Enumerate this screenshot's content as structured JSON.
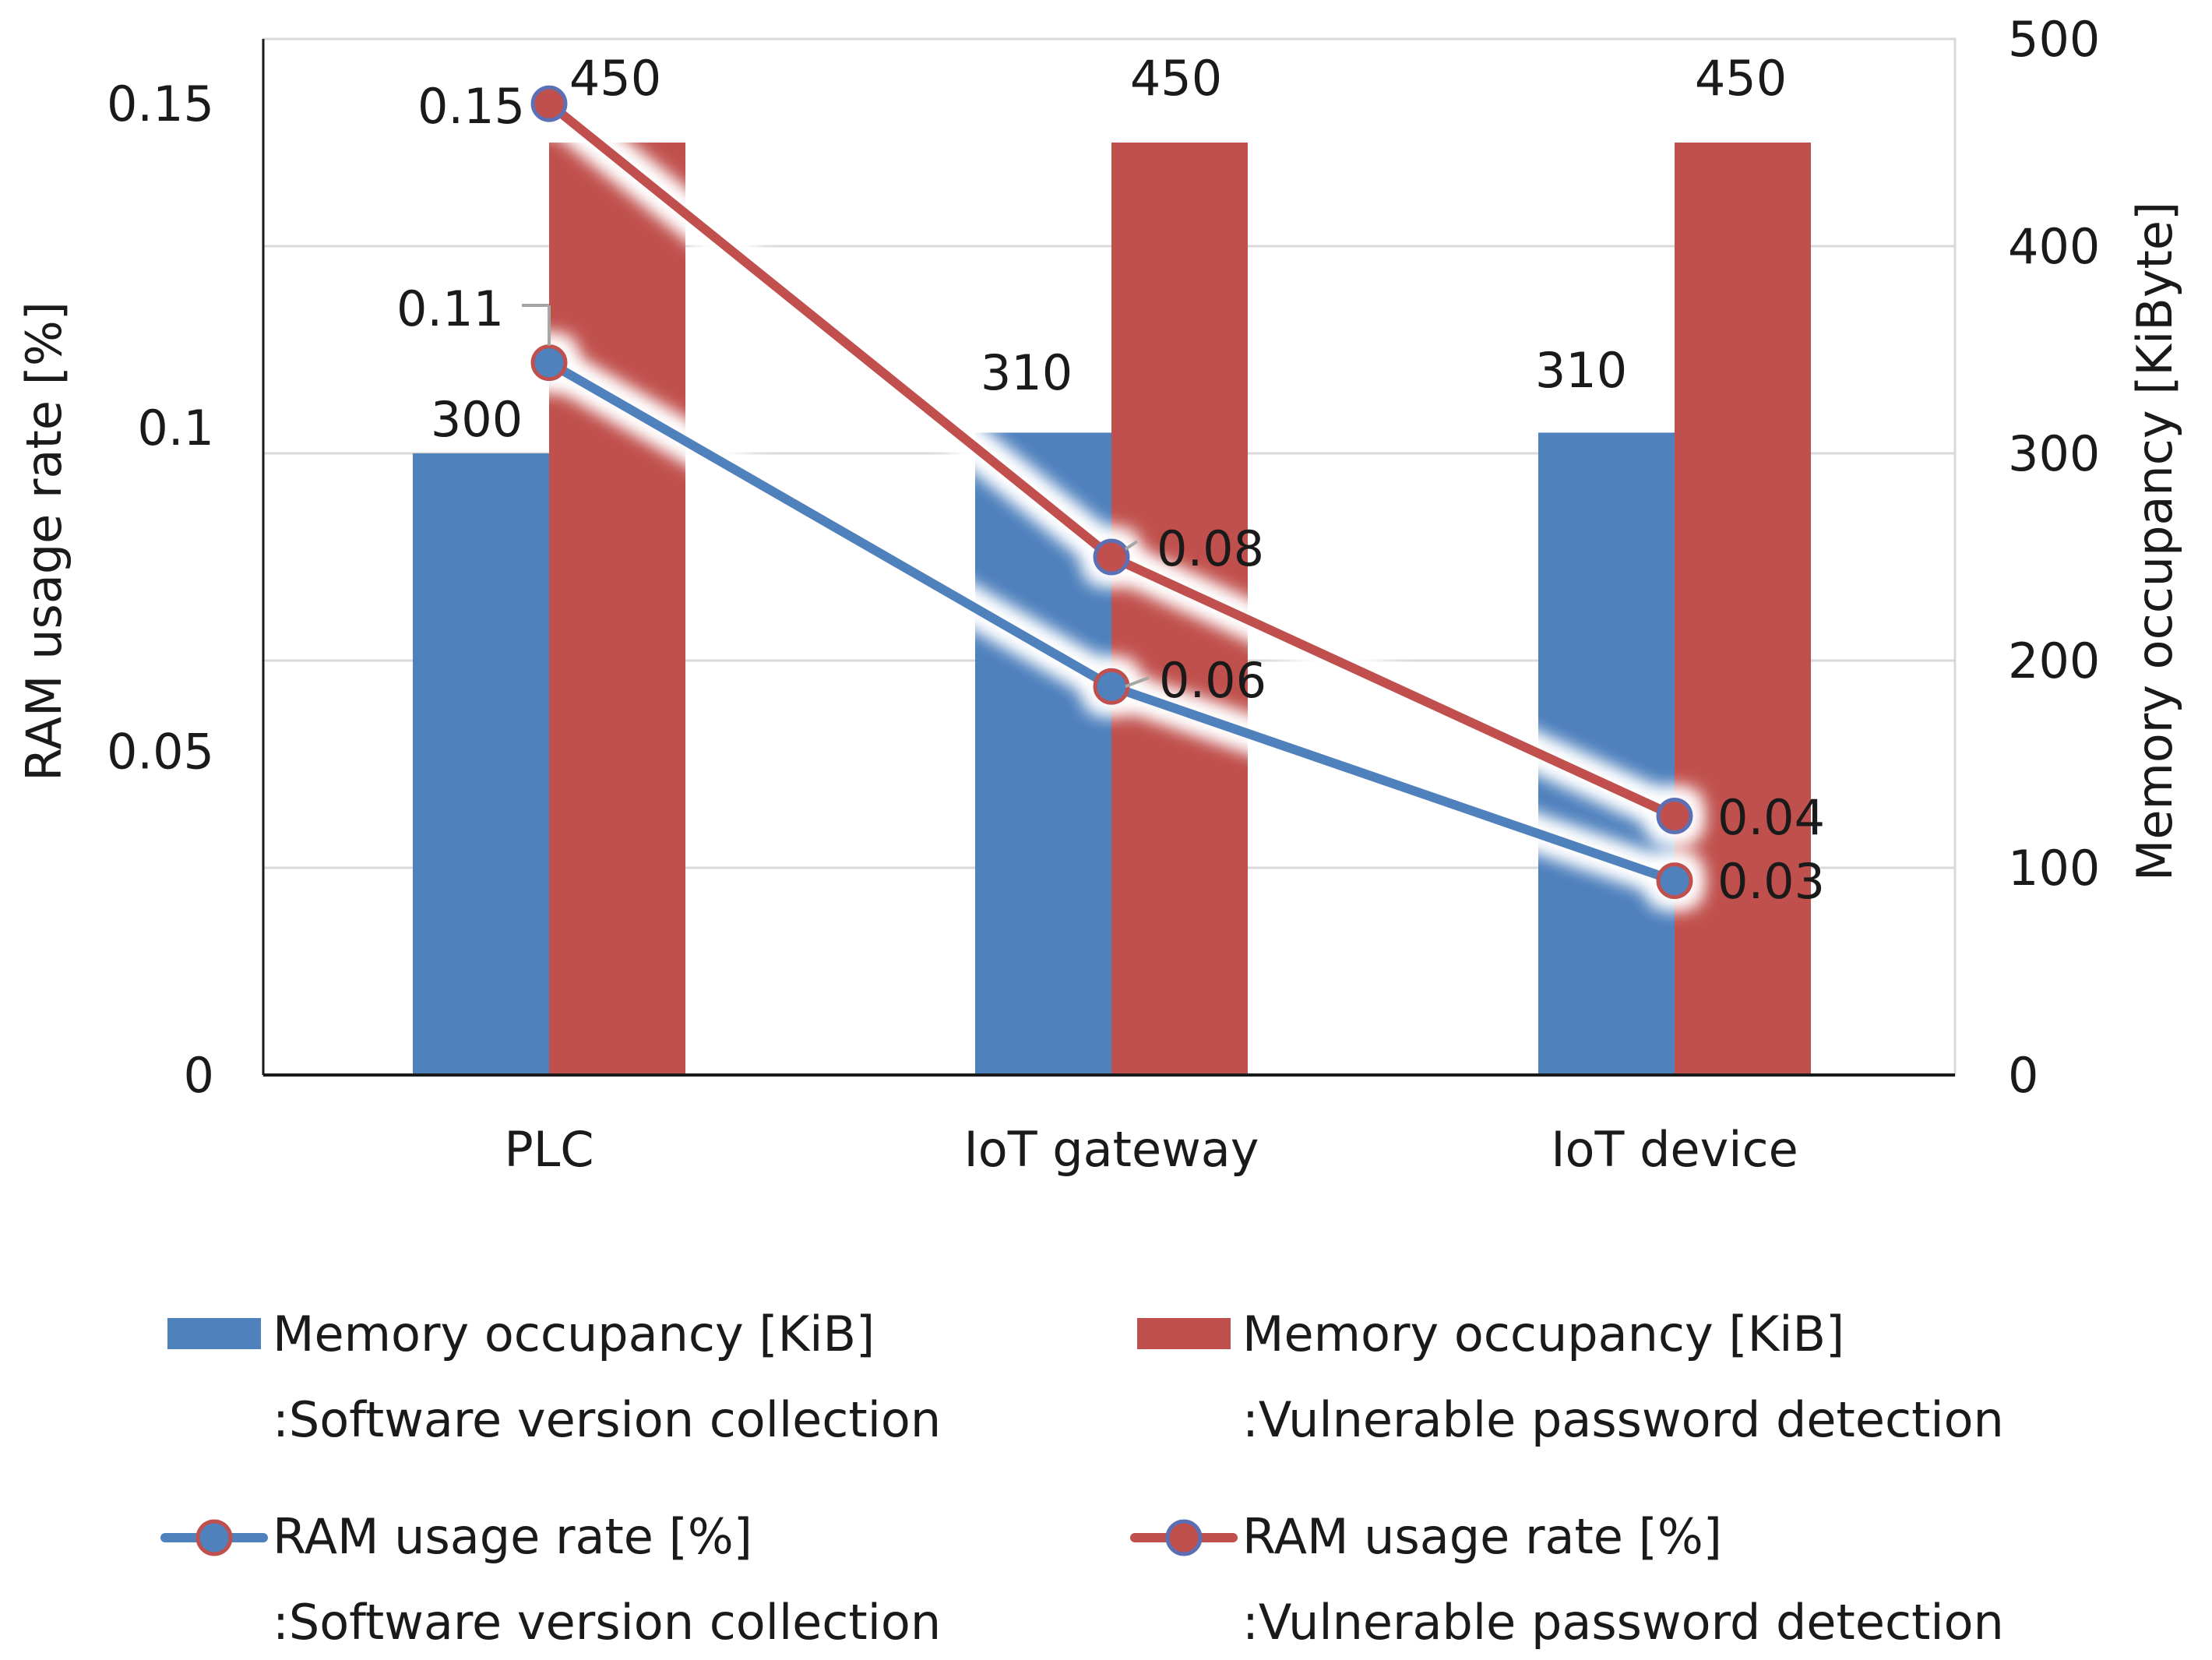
{
  "chart_data": {
    "type": "bar+line",
    "categories": [
      "PLC",
      "IoT gateway",
      "IoT device"
    ],
    "left_axis": {
      "label": "RAM usage rate [%]",
      "ylim": [
        0,
        0.16
      ],
      "ticks": [
        0,
        0.05,
        0.1,
        0.15
      ],
      "tick_labels": [
        "0",
        "0.05",
        "0.1",
        "0.15"
      ]
    },
    "right_axis": {
      "label": "Memory occupancy [KiByte]",
      "ylim": [
        0,
        500
      ],
      "ticks": [
        0,
        100,
        200,
        300,
        400,
        500
      ],
      "tick_labels": [
        "0",
        "100",
        "200",
        "300",
        "400",
        "500"
      ]
    },
    "bar_series": [
      {
        "name": "Memory occupancy [KiB]",
        "subtitle": ":Software version collection",
        "color": "#4f81bd",
        "axis": "right",
        "values": [
          300,
          310,
          310
        ],
        "labels": [
          "300",
          "310",
          "310"
        ]
      },
      {
        "name": "Memory occupancy [KiB]",
        "subtitle": ":Vulnerable password detection",
        "color": "#c0504d",
        "axis": "right",
        "values": [
          450,
          450,
          450
        ],
        "labels": [
          "450",
          "450",
          "450"
        ]
      }
    ],
    "line_series": [
      {
        "name": "RAM usage rate [%]",
        "subtitle": ":Software version collection",
        "color": "#4f81bd",
        "axis": "left",
        "values": [
          0.11,
          0.06,
          0.03
        ],
        "labels": [
          "0.11",
          "0.06",
          "0.03"
        ]
      },
      {
        "name": "RAM usage rate [%]",
        "subtitle": ":Vulnerable password detection",
        "color": "#c0504d",
        "axis": "left",
        "values": [
          0.15,
          0.08,
          0.04
        ],
        "labels": [
          "0.15",
          "0.08",
          "0.04"
        ]
      }
    ],
    "grid": true,
    "legend_position": "bottom"
  }
}
